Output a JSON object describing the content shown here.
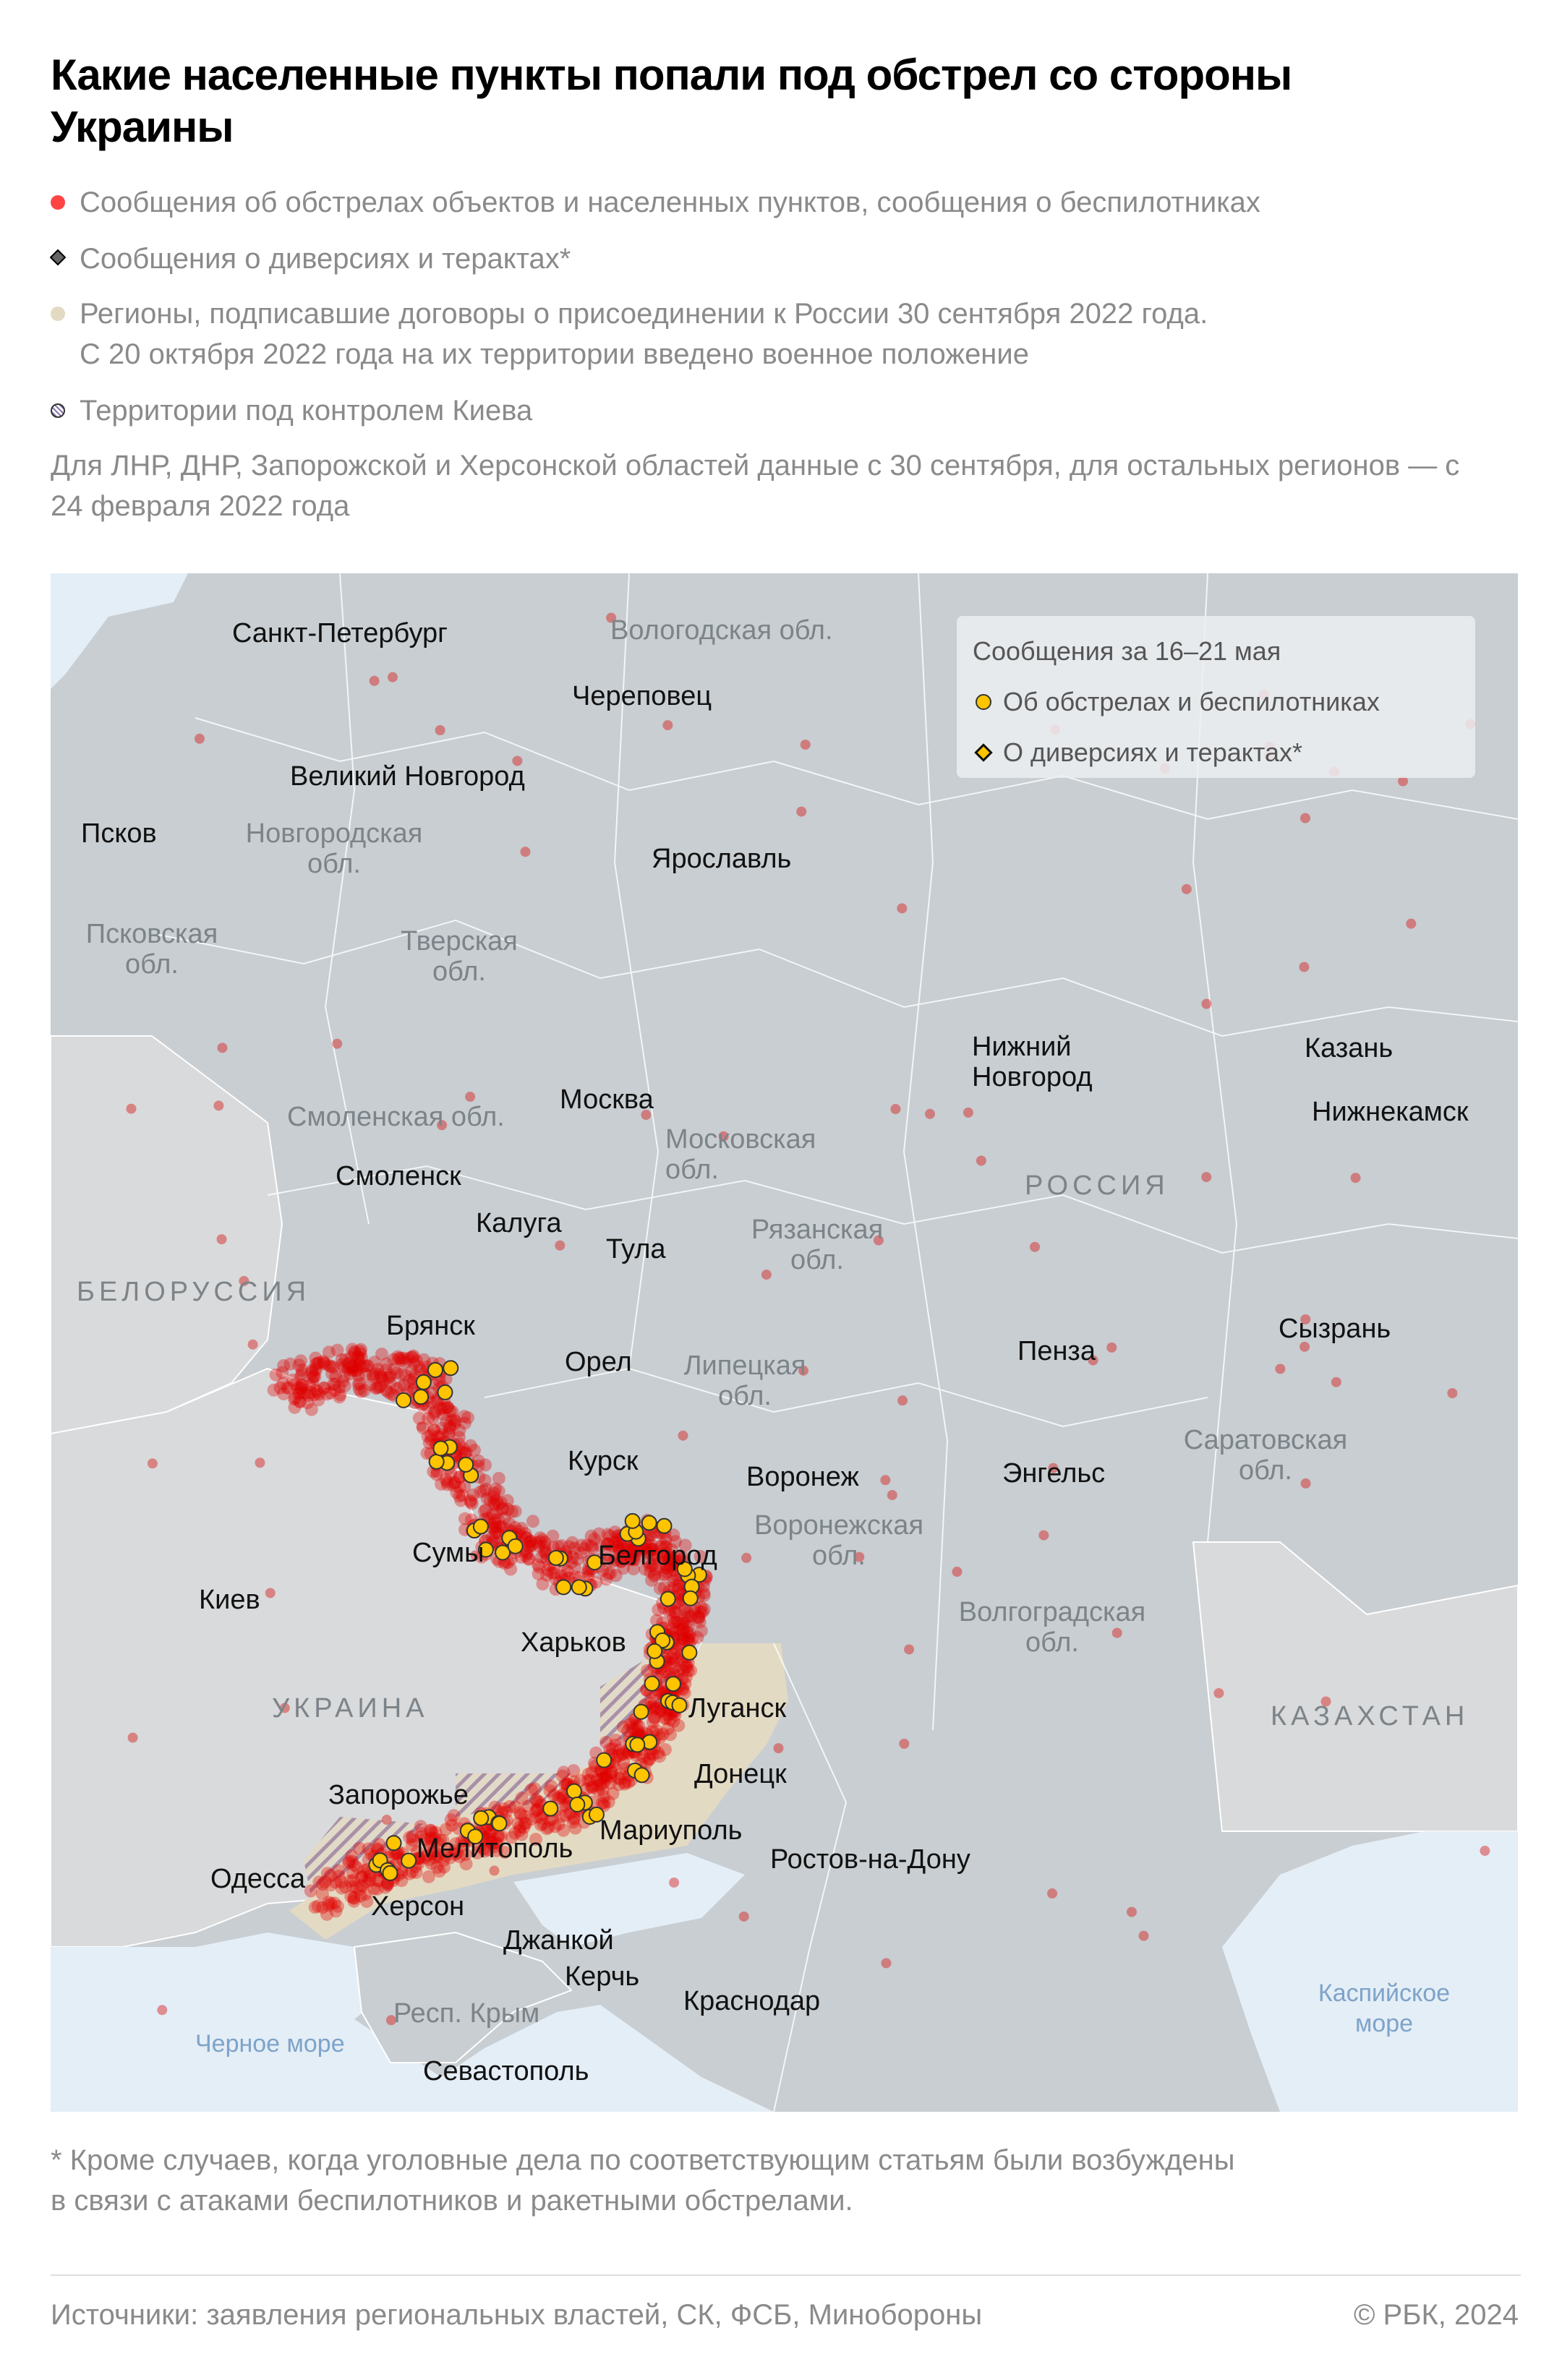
{
  "title": "Какие населенные пункты попали под обстрел со стороны Украины",
  "legend": [
    {
      "marker": "red-dot",
      "color": "#ff4444",
      "text": "Сообщения об обстрелах объектов и населенных пунктов, сообщения о беспилотниках"
    },
    {
      "marker": "gray-diamond",
      "color": "#666666",
      "text": "Сообщения о диверсиях и терактах*"
    },
    {
      "marker": "beige-dot",
      "color": "#e3dac3",
      "text": "Регионы, подписавшие договоры о присоединении к России 30 сентября 2022 года.",
      "text2": "С 20 октября 2022 года на их территории введено военное положение"
    },
    {
      "marker": "hatched-dot",
      "color": "#8a7ab0",
      "text": "Территории под контролем Киева"
    }
  ],
  "note": "Для ЛНР, ДНР, Запорожской и Херсонской областей данные с 30 сентября, для остальных регионов — с 24 февраля 2022 года",
  "map": {
    "inset_legend": {
      "title": "Сообщения за 16–21 мая",
      "items": [
        {
          "marker": "yellow-dot",
          "color": "#ffc400",
          "text": "Об обстрелах и беспилотниках"
        },
        {
          "marker": "yellow-diamond",
          "color": "#ffc400",
          "text": "О диверсиях и терактах*"
        }
      ]
    },
    "cities": [
      "Санкт-Петербург",
      "Череповец",
      "Великий Новгород",
      "Псков",
      "Ярославль",
      "Нижний Новгород",
      "Казань",
      "Нижнекамск",
      "Москва",
      "Смоленск",
      "Калуга",
      "Тула",
      "Брянск",
      "Пенза",
      "Сызрань",
      "Орел",
      "Курск",
      "Воронеж",
      "Энгельс",
      "Сумы",
      "Белгород",
      "Киев",
      "Харьков",
      "Луганск",
      "Донецк",
      "Запорожье",
      "Мариуполь",
      "Мелитополь",
      "Ростов-на-Дону",
      "Одесса",
      "Херсон",
      "Джанкой",
      "Керчь",
      "Краснодар",
      "Севастополь"
    ],
    "regions": [
      "Вологодская обл.",
      "Новгородская обл.",
      "Псковская обл.",
      "Тверская обл.",
      "Смоленская обл.",
      "Московская обл.",
      "Рязанская обл.",
      "Липецкая обл.",
      "Саратовская обл.",
      "Воронежская обл.",
      "Волгоградская обл.",
      "Респ. Крым"
    ],
    "countries": [
      "РОССИЯ",
      "БЕЛОРУССИЯ",
      "УКРАИНА",
      "КАЗАХСТАН"
    ],
    "seas": [
      "Черное море",
      "Каспийское море"
    ]
  },
  "footnote": [
    "* Кроме случаев, когда уголовные дела по соответствующим статьям были возбуждены",
    "в связи с атаками беспилотников и ракетными обстрелами."
  ],
  "sources": "Источники: заявления региональных властей, СК, ФСБ, Минобороны",
  "copyright": "© РБК, 2024"
}
